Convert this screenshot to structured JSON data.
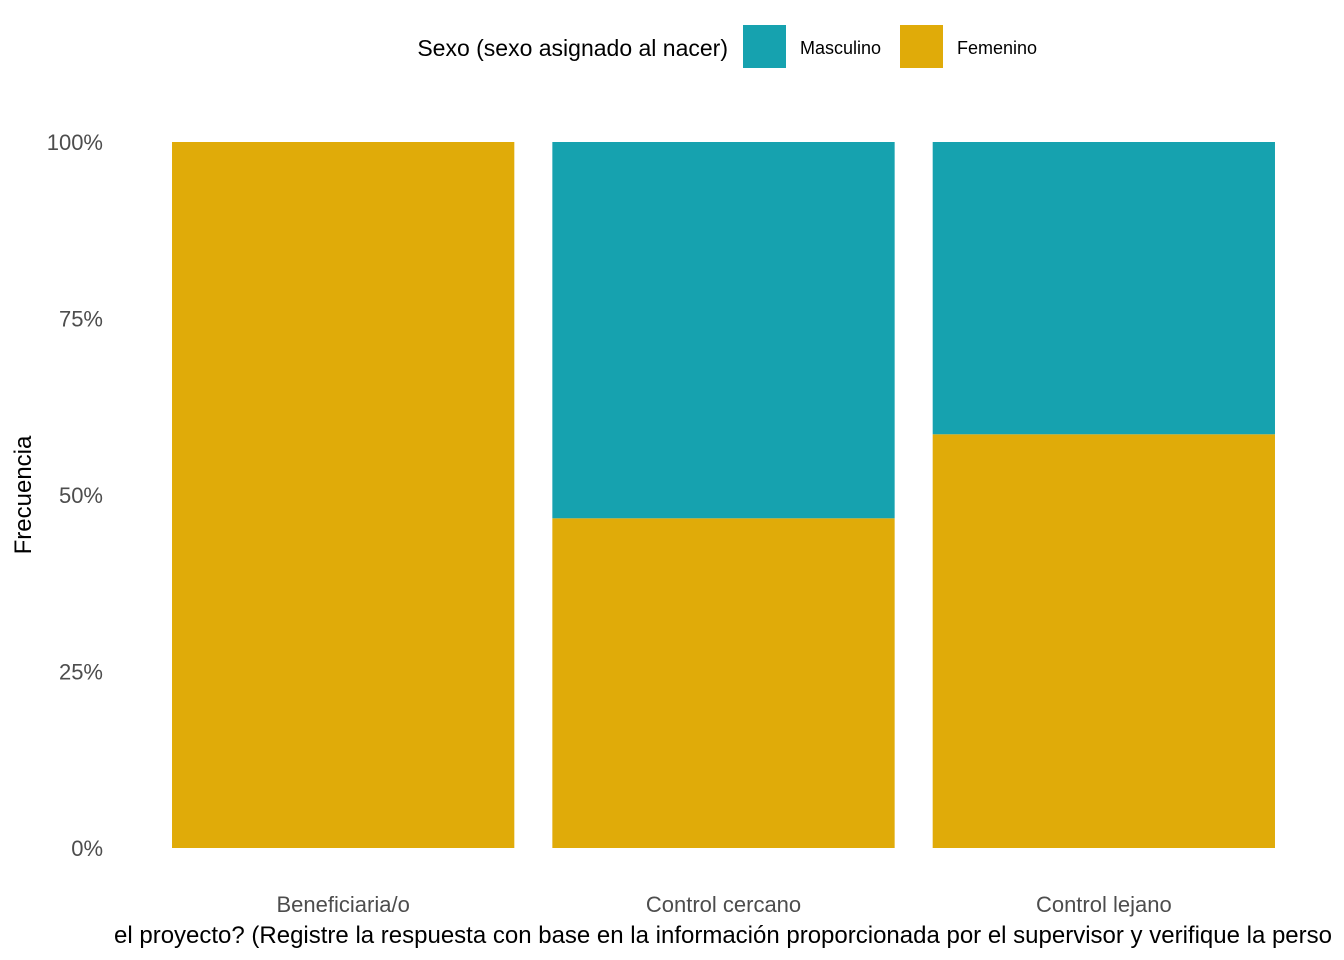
{
  "chart_data": {
    "type": "bar",
    "stacked": true,
    "categories": [
      "Beneficiaria/o",
      "Control cercano",
      "Control lejano"
    ],
    "series": [
      {
        "name": "Femenino",
        "values": [
          1.0,
          0.467,
          0.586
        ],
        "color": "#E0AB09"
      },
      {
        "name": "Masculino",
        "values": [
          0.0,
          0.533,
          0.414
        ],
        "color": "#16A2AF"
      }
    ],
    "ylabel": "Frecuencia",
    "xlabel": "el proyecto? (Registre la respuesta con base en la información proporcionada por el supervisor y verifique la perso",
    "ylim": [
      0,
      1
    ],
    "yticks": [
      0,
      0.25,
      0.5,
      0.75,
      1
    ],
    "ytick_labels": [
      "0%",
      "25%",
      "50%",
      "75%",
      "100%"
    ],
    "legend": {
      "title": "Sexo (sexo asignado al nacer)",
      "position": "top",
      "entries": [
        {
          "label": "Masculino",
          "color": "#16A2AF"
        },
        {
          "label": "Femenino",
          "color": "#E0AB09"
        }
      ]
    },
    "grid": false
  }
}
